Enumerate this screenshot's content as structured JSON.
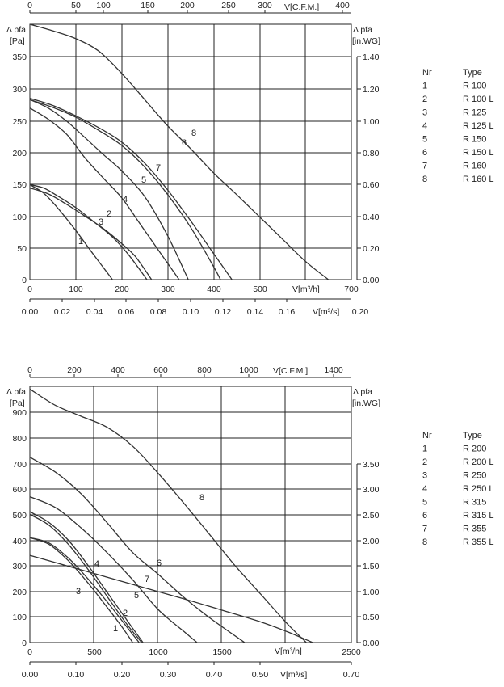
{
  "chart_data": [
    {
      "type": "line",
      "top_axis": {
        "label": "V[C.F.M.]",
        "ticks": [
          "0",
          "50",
          "100",
          "150",
          "200",
          "250",
          "300",
          "400"
        ]
      },
      "left_axis": {
        "label_line1": "Δ pfa",
        "label_line2": "[Pa]",
        "ticks": [
          "0",
          "50",
          "100",
          "150",
          "200",
          "250",
          "300",
          "350"
        ],
        "ylim": [
          0,
          390
        ]
      },
      "right_axis": {
        "label_line1": "Δ pfa",
        "label_line2": "[in.WG]",
        "ticks": [
          "0.00",
          "0.20",
          "0.40",
          "0.60",
          "0.80",
          "1.00",
          "1.20",
          "1.40"
        ]
      },
      "bottom_axis_1": {
        "label": "V[m³/h]",
        "ticks": [
          "0",
          "100",
          "200",
          "300",
          "400",
          "500",
          "700"
        ],
        "xlim": [
          0,
          700
        ]
      },
      "bottom_axis_2": {
        "label": "V[m³/s]",
        "ticks": [
          "0.00",
          "0.02",
          "0.04",
          "0.06",
          "0.08",
          "0.10",
          "0.12",
          "0.14",
          "0.16",
          "0.20"
        ]
      },
      "grid": true,
      "series": [
        {
          "name": "1",
          "label": "1",
          "x": [
            0,
            30,
            60,
            100,
            140,
            180
          ],
          "y": [
            145,
            132,
            110,
            75,
            37,
            0
          ]
        },
        {
          "name": "2",
          "label": "2",
          "x": [
            0,
            30,
            60,
            100,
            140,
            180,
            215,
            255
          ],
          "y": [
            145,
            140,
            128,
            110,
            88,
            65,
            38,
            0
          ]
        },
        {
          "name": "3",
          "label": "3",
          "x": [
            0,
            40,
            80,
            120,
            160,
            200,
            230,
            265
          ],
          "y": [
            140,
            131,
            115,
            97,
            78,
            55,
            35,
            0
          ]
        },
        {
          "name": "4",
          "label": "4",
          "x": [
            0,
            40,
            80,
            120,
            160,
            200,
            240,
            285,
            325
          ],
          "y": [
            262,
            245,
            222,
            186,
            155,
            125,
            85,
            40,
            0
          ]
        },
        {
          "name": "5",
          "label": "5",
          "x": [
            0,
            40,
            80,
            120,
            160,
            200,
            250,
            300,
            345
          ],
          "y": [
            275,
            262,
            242,
            217,
            191,
            166,
            127,
            67,
            0
          ]
        },
        {
          "name": "6",
          "label": "6",
          "x": [
            0,
            50,
            100,
            150,
            200,
            250,
            300,
            350,
            400,
            415
          ],
          "y": [
            275,
            263,
            248,
            228,
            205,
            172,
            130,
            80,
            20,
            0
          ]
        },
        {
          "name": "7",
          "label": "7",
          "x": [
            0,
            50,
            100,
            150,
            200,
            250,
            300,
            350,
            400,
            440
          ],
          "y": [
            277,
            266,
            250,
            232,
            210,
            178,
            137,
            90,
            40,
            0
          ]
        },
        {
          "name": "8",
          "label": "8",
          "x": [
            0,
            50,
            100,
            150,
            200,
            250,
            300,
            350,
            400,
            450,
            500,
            550,
            600,
            650
          ],
          "y": [
            390,
            380,
            368,
            349,
            315,
            275,
            235,
            200,
            163,
            130,
            96,
            62,
            28,
            0
          ]
        }
      ],
      "legend": {
        "header_nr": "Nr",
        "header_type": "Type",
        "rows": [
          {
            "nr": "1",
            "type": "R 100"
          },
          {
            "nr": "2",
            "type": "R 100 L"
          },
          {
            "nr": "3",
            "type": "R 125"
          },
          {
            "nr": "4",
            "type": "R 125 L"
          },
          {
            "nr": "5",
            "type": "R 150"
          },
          {
            "nr": "6",
            "type": "R 150 L"
          },
          {
            "nr": "7",
            "type": "R 160"
          },
          {
            "nr": "8",
            "type": "R 160 L"
          }
        ]
      }
    },
    {
      "type": "line",
      "top_axis": {
        "label": "V[C.F.M.]",
        "ticks": [
          "0",
          "200",
          "400",
          "600",
          "800",
          "1000",
          "1400"
        ]
      },
      "left_axis": {
        "label_line1": "Δ pfa",
        "label_line2": "[Pa]",
        "ticks": [
          "0",
          "100",
          "200",
          "300",
          "400",
          "500",
          "600",
          "700",
          "800",
          "900"
        ],
        "ylim": [
          0,
          940
        ]
      },
      "right_axis": {
        "label_line1": "Δ pfa",
        "label_line2": "[in.WG]",
        "ticks": [
          "0.00",
          "0.50",
          "1.00",
          "1.50",
          "2.00",
          "2.50",
          "3.00",
          "3.50"
        ]
      },
      "bottom_axis_1": {
        "label": "V[m³/h]",
        "ticks": [
          "0",
          "500",
          "1000",
          "1500",
          "2500"
        ],
        "xlim": [
          0,
          2500
        ]
      },
      "bottom_axis_2": {
        "label": "V[m³/s]",
        "ticks": [
          "0.00",
          "0.10",
          "0.20",
          "0.30",
          "0.40",
          "0.50",
          "0.70"
        ]
      },
      "grid": true,
      "series": [
        {
          "name": "1",
          "label": "1",
          "x": [
            0,
            150,
            300,
            450,
            600,
            720,
            800
          ],
          "y": [
            385,
            360,
            300,
            220,
            130,
            55,
            0
          ]
        },
        {
          "name": "2",
          "label": "2",
          "x": [
            0,
            150,
            300,
            450,
            600,
            750,
            850
          ],
          "y": [
            385,
            365,
            310,
            235,
            150,
            60,
            0
          ]
        },
        {
          "name": "3",
          "label": "3",
          "x": [
            0,
            150,
            300,
            450,
            600,
            750,
            870
          ],
          "y": [
            470,
            430,
            360,
            270,
            170,
            70,
            0
          ]
        },
        {
          "name": "4",
          "label": "4",
          "x": [
            0,
            150,
            300,
            450,
            600,
            750,
            880
          ],
          "y": [
            480,
            440,
            375,
            285,
            185,
            85,
            0
          ]
        },
        {
          "name": "5",
          "label": "5",
          "x": [
            0,
            200,
            400,
            600,
            800,
            1000,
            1200,
            1300
          ],
          "y": [
            535,
            495,
            420,
            330,
            230,
            120,
            40,
            0
          ]
        },
        {
          "name": "6",
          "label": "6",
          "x": [
            0,
            200,
            400,
            600,
            800,
            1000,
            1200,
            1400,
            1670
          ],
          "y": [
            680,
            625,
            545,
            440,
            330,
            250,
            165,
            90,
            0
          ]
        },
        {
          "name": "7",
          "label": "7",
          "x": [
            0,
            300,
            600,
            900,
            1200,
            1500,
            1800,
            2000,
            2200
          ],
          "y": [
            320,
            280,
            240,
            200,
            160,
            118,
            75,
            40,
            0
          ]
        },
        {
          "name": "8",
          "label": "8",
          "x": [
            0,
            200,
            400,
            600,
            800,
            1000,
            1200,
            1400,
            1600,
            1800,
            2000,
            2150
          ],
          "y": [
            930,
            870,
            830,
            790,
            720,
            620,
            510,
            395,
            280,
            175,
            70,
            0
          ]
        }
      ],
      "legend": {
        "header_nr": "Nr",
        "header_type": "Type",
        "rows": [
          {
            "nr": "1",
            "type": "R 200"
          },
          {
            "nr": "2",
            "type": "R 200 L"
          },
          {
            "nr": "3",
            "type": "R 250"
          },
          {
            "nr": "4",
            "type": "R 250 L"
          },
          {
            "nr": "5",
            "type": "R 315"
          },
          {
            "nr": "6",
            "type": "R 315 L"
          },
          {
            "nr": "7",
            "type": "R 355"
          },
          {
            "nr": "8",
            "type": "R 355 L"
          }
        ]
      }
    }
  ]
}
